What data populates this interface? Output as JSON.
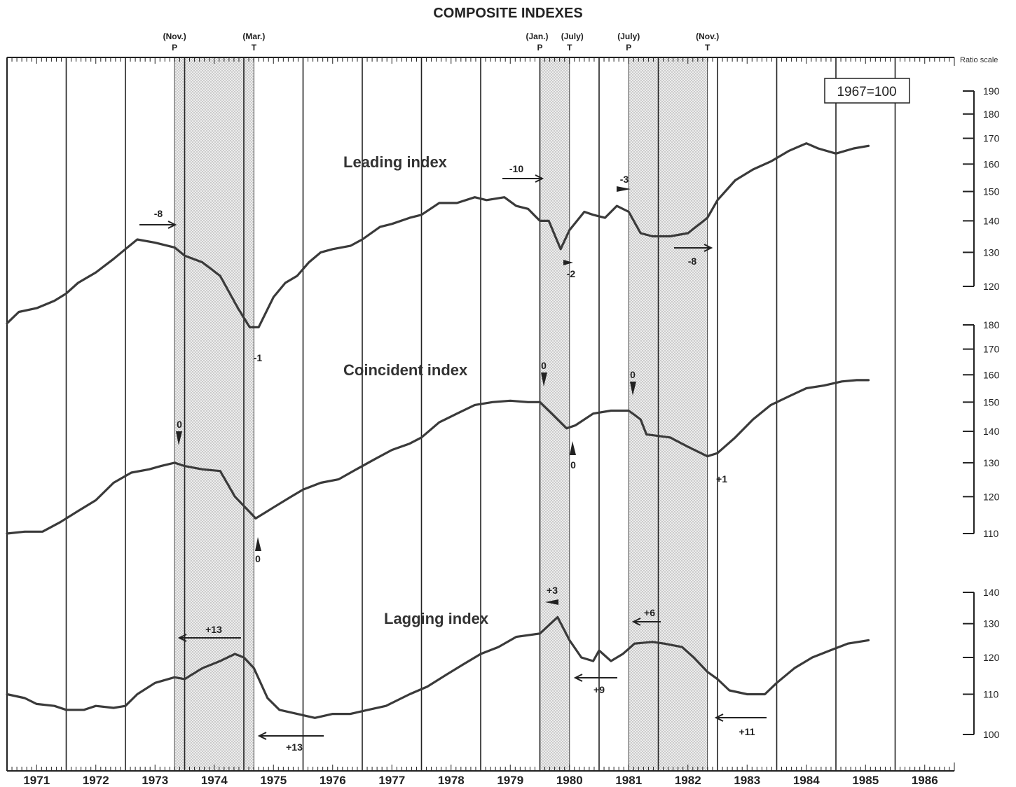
{
  "chart_data": {
    "type": "line",
    "title": "COMPOSITE INDEXES",
    "base_label": "1967=100",
    "scale_label": "Ratio scale",
    "years": [
      "1971",
      "1972",
      "1973",
      "1974",
      "1975",
      "1976",
      "1977",
      "1978",
      "1979",
      "1980",
      "1981",
      "1982",
      "1983",
      "1984",
      "1985",
      "1986"
    ],
    "recessions": [
      {
        "start": 1973.83,
        "end": 1975.17
      },
      {
        "start": 1980.0,
        "end": 1980.5
      },
      {
        "start": 1981.5,
        "end": 1982.83
      }
    ],
    "turning_points": [
      {
        "t": 1973.83,
        "month": "(Nov.)",
        "type": "P"
      },
      {
        "t": 1975.17,
        "month": "(Mar.)",
        "type": "T"
      },
      {
        "t": 1980.0,
        "month": "(Jan.)",
        "type": "P"
      },
      {
        "t": 1980.5,
        "month": "(July)",
        "type": "T"
      },
      {
        "t": 1981.5,
        "month": "(July)",
        "type": "P"
      },
      {
        "t": 1982.83,
        "month": "(Nov.)",
        "type": "T"
      }
    ],
    "series": [
      {
        "name": "Leading index",
        "ticks": [
          120,
          130,
          140,
          150,
          160,
          170,
          180,
          190
        ],
        "points": [
          [
            1971.0,
            110
          ],
          [
            1971.2,
            113
          ],
          [
            1971.5,
            114
          ],
          [
            1971.8,
            116
          ],
          [
            1972.0,
            118
          ],
          [
            1972.2,
            121
          ],
          [
            1972.5,
            124
          ],
          [
            1972.8,
            128
          ],
          [
            1973.0,
            131
          ],
          [
            1973.2,
            134
          ],
          [
            1973.5,
            133
          ],
          [
            1973.83,
            131.5
          ],
          [
            1974.0,
            129
          ],
          [
            1974.3,
            127
          ],
          [
            1974.6,
            123
          ],
          [
            1974.9,
            114
          ],
          [
            1975.1,
            109
          ],
          [
            1975.25,
            109
          ],
          [
            1975.5,
            117
          ],
          [
            1975.7,
            121
          ],
          [
            1975.9,
            123
          ],
          [
            1976.1,
            127
          ],
          [
            1976.3,
            130
          ],
          [
            1976.5,
            131
          ],
          [
            1976.8,
            132
          ],
          [
            1977.0,
            134
          ],
          [
            1977.3,
            138
          ],
          [
            1977.5,
            139
          ],
          [
            1977.8,
            141
          ],
          [
            1978.0,
            142
          ],
          [
            1978.3,
            146
          ],
          [
            1978.6,
            146
          ],
          [
            1978.9,
            148
          ],
          [
            1979.1,
            147
          ],
          [
            1979.4,
            148
          ],
          [
            1979.6,
            145
          ],
          [
            1979.8,
            144
          ],
          [
            1980.0,
            140
          ],
          [
            1980.15,
            140
          ],
          [
            1980.35,
            131
          ],
          [
            1980.5,
            137
          ],
          [
            1980.75,
            143
          ],
          [
            1980.9,
            142
          ],
          [
            1981.1,
            141
          ],
          [
            1981.3,
            145
          ],
          [
            1981.5,
            143
          ],
          [
            1981.7,
            136
          ],
          [
            1981.9,
            135
          ],
          [
            1982.2,
            135
          ],
          [
            1982.5,
            136
          ],
          [
            1982.83,
            141
          ],
          [
            1983.0,
            147
          ],
          [
            1983.3,
            154
          ],
          [
            1983.6,
            158
          ],
          [
            1983.9,
            161
          ],
          [
            1984.2,
            165
          ],
          [
            1984.5,
            168
          ],
          [
            1984.7,
            166
          ],
          [
            1985.0,
            164
          ],
          [
            1985.3,
            166
          ],
          [
            1985.55,
            167
          ]
        ]
      },
      {
        "name": "Coincident index",
        "ticks": [
          110,
          120,
          130,
          140,
          150,
          160,
          170,
          180
        ],
        "points": [
          [
            1971.0,
            110
          ],
          [
            1971.3,
            110.5
          ],
          [
            1971.6,
            110.5
          ],
          [
            1971.9,
            113
          ],
          [
            1972.2,
            116
          ],
          [
            1972.5,
            119
          ],
          [
            1972.8,
            124
          ],
          [
            1973.1,
            127
          ],
          [
            1973.4,
            128
          ],
          [
            1973.6,
            129
          ],
          [
            1973.83,
            130
          ],
          [
            1974.0,
            129
          ],
          [
            1974.3,
            128
          ],
          [
            1974.6,
            127.5
          ],
          [
            1974.85,
            120
          ],
          [
            1975.2,
            114
          ],
          [
            1975.5,
            117
          ],
          [
            1975.8,
            120
          ],
          [
            1976.0,
            122
          ],
          [
            1976.3,
            124
          ],
          [
            1976.6,
            125
          ],
          [
            1976.9,
            128
          ],
          [
            1977.2,
            131
          ],
          [
            1977.5,
            134
          ],
          [
            1977.8,
            136
          ],
          [
            1978.0,
            138
          ],
          [
            1978.3,
            143
          ],
          [
            1978.6,
            146
          ],
          [
            1978.9,
            149
          ],
          [
            1979.2,
            150
          ],
          [
            1979.5,
            150.5
          ],
          [
            1979.8,
            150
          ],
          [
            1980.0,
            150
          ],
          [
            1980.2,
            146
          ],
          [
            1980.45,
            141
          ],
          [
            1980.6,
            142
          ],
          [
            1980.9,
            146
          ],
          [
            1981.2,
            147
          ],
          [
            1981.5,
            147
          ],
          [
            1981.7,
            144
          ],
          [
            1981.8,
            139
          ],
          [
            1982.2,
            138
          ],
          [
            1982.5,
            135
          ],
          [
            1982.83,
            132
          ],
          [
            1983.0,
            133
          ],
          [
            1983.3,
            138
          ],
          [
            1983.6,
            144
          ],
          [
            1983.9,
            149
          ],
          [
            1984.2,
            152
          ],
          [
            1984.5,
            155
          ],
          [
            1984.8,
            156
          ],
          [
            1985.1,
            157.5
          ],
          [
            1985.35,
            158
          ],
          [
            1985.55,
            158
          ]
        ]
      },
      {
        "name": "Lagging index",
        "ticks": [
          100,
          110,
          120,
          130,
          140
        ],
        "points": [
          [
            1971.0,
            110
          ],
          [
            1971.3,
            109
          ],
          [
            1971.5,
            107.5
          ],
          [
            1971.8,
            107
          ],
          [
            1972.0,
            106
          ],
          [
            1972.3,
            106
          ],
          [
            1972.5,
            107
          ],
          [
            1972.8,
            106.5
          ],
          [
            1973.0,
            107
          ],
          [
            1973.2,
            110
          ],
          [
            1973.5,
            113
          ],
          [
            1973.83,
            114.5
          ],
          [
            1974.0,
            114
          ],
          [
            1974.3,
            117
          ],
          [
            1974.6,
            119
          ],
          [
            1974.85,
            121
          ],
          [
            1975.0,
            120
          ],
          [
            1975.17,
            117
          ],
          [
            1975.4,
            109
          ],
          [
            1975.6,
            106
          ],
          [
            1975.9,
            105
          ],
          [
            1976.2,
            104
          ],
          [
            1976.5,
            105
          ],
          [
            1976.8,
            105
          ],
          [
            1977.1,
            106
          ],
          [
            1977.4,
            107
          ],
          [
            1977.8,
            110
          ],
          [
            1978.1,
            112
          ],
          [
            1978.4,
            115
          ],
          [
            1978.7,
            118
          ],
          [
            1979.0,
            121
          ],
          [
            1979.3,
            123
          ],
          [
            1979.6,
            126
          ],
          [
            1980.0,
            127
          ],
          [
            1980.3,
            132
          ],
          [
            1980.5,
            125
          ],
          [
            1980.7,
            120
          ],
          [
            1980.9,
            119
          ],
          [
            1981.0,
            122
          ],
          [
            1981.2,
            119
          ],
          [
            1981.4,
            121
          ],
          [
            1981.6,
            124
          ],
          [
            1981.9,
            124.5
          ],
          [
            1982.1,
            124
          ],
          [
            1982.4,
            123
          ],
          [
            1982.6,
            120
          ],
          [
            1982.83,
            116
          ],
          [
            1983.0,
            114
          ],
          [
            1983.2,
            111
          ],
          [
            1983.5,
            110
          ],
          [
            1983.8,
            110
          ],
          [
            1984.0,
            113
          ],
          [
            1984.3,
            117
          ],
          [
            1984.6,
            120
          ],
          [
            1984.9,
            122
          ],
          [
            1985.2,
            124
          ],
          [
            1985.55,
            125
          ]
        ]
      }
    ],
    "annotations": [
      "-8",
      "-1",
      "-10",
      "-2",
      "-3",
      "-8",
      "0",
      "0",
      "0",
      "0",
      "0",
      "+1",
      "+13",
      "+13",
      "+3",
      "+9",
      "+6",
      "+11"
    ]
  }
}
